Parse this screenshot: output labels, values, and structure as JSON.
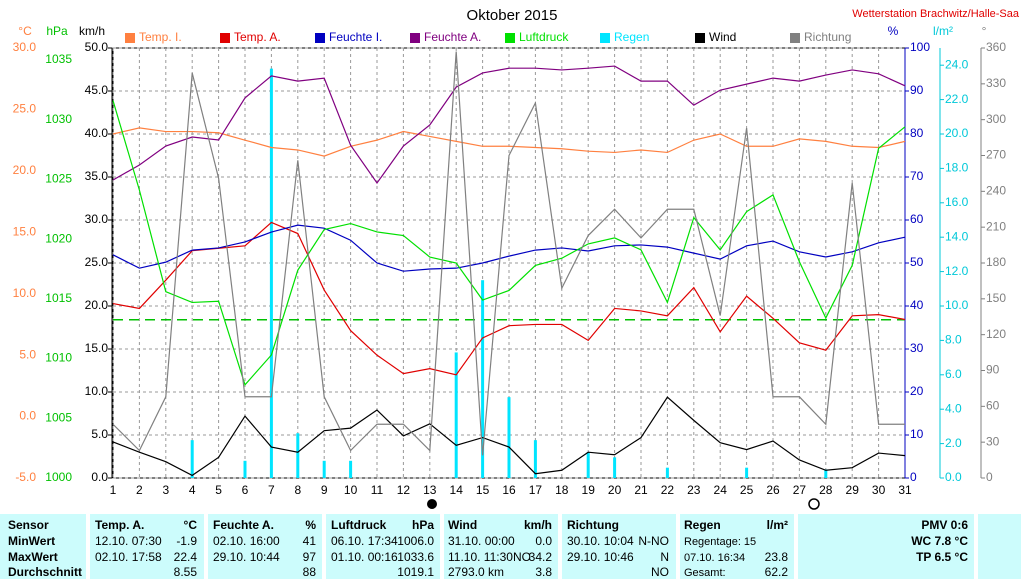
{
  "chart_data": {
    "type": "line",
    "title": "Oktober 2015",
    "station": "Wetterstation Brachwitz/Halle-Saa",
    "x": [
      1,
      2,
      3,
      4,
      5,
      6,
      7,
      8,
      9,
      10,
      11,
      12,
      13,
      14,
      15,
      16,
      17,
      18,
      19,
      20,
      21,
      22,
      23,
      24,
      25,
      26,
      27,
      28,
      29,
      30,
      31
    ],
    "xlim": [
      1,
      31
    ],
    "grid": true,
    "axes": {
      "temp": {
        "label": "°C",
        "color": "#ff8040",
        "lim": [
          -5,
          30
        ],
        "ticks": [
          {
            "value": -5,
            "label": "-5.0"
          },
          {
            "value": 0,
            "label": "0.0"
          },
          {
            "value": 5,
            "label": "5.0"
          },
          {
            "value": 10,
            "label": "10.0"
          },
          {
            "value": 15,
            "label": "15.0"
          },
          {
            "value": 20,
            "label": "20.0"
          },
          {
            "value": 25,
            "label": "25.0"
          },
          {
            "value": 30,
            "label": "30.0"
          }
        ]
      },
      "hpa": {
        "label": "hPa",
        "color": "#00c000",
        "lim": [
          1000,
          1036
        ],
        "ticks": [
          1000,
          1005,
          1010,
          1015,
          1020,
          1025,
          1030,
          1035
        ]
      },
      "kmh": {
        "label": "km/h",
        "color": "#000000",
        "lim": [
          0,
          50
        ],
        "ticks": [
          {
            "value": 0,
            "label": "0.0"
          },
          {
            "value": 5,
            "label": "5.0"
          },
          {
            "value": 10,
            "label": "10.0"
          },
          {
            "value": 15,
            "label": "15.0"
          },
          {
            "value": 20,
            "label": "20.0"
          },
          {
            "value": 25,
            "label": "25.0"
          },
          {
            "value": 30,
            "label": "30.0"
          },
          {
            "value": 35,
            "label": "35.0"
          },
          {
            "value": 40,
            "label": "40.0"
          },
          {
            "value": 45,
            "label": "45.0"
          },
          {
            "value": 50,
            "label": "50.0"
          }
        ]
      },
      "pct": {
        "label": "%",
        "color": "#0000c0",
        "lim": [
          0,
          100
        ],
        "ticks": [
          0,
          10,
          20,
          30,
          40,
          50,
          60,
          70,
          80,
          90,
          100
        ]
      },
      "rain": {
        "label": "l/m²",
        "color": "#00c8d8",
        "lim": [
          0,
          25
        ],
        "ticks": [
          {
            "value": 0,
            "label": "0.0"
          },
          {
            "value": 2,
            "label": "2.0"
          },
          {
            "value": 4,
            "label": "4.0"
          },
          {
            "value": 6,
            "label": "6.0"
          },
          {
            "value": 8,
            "label": "8.0"
          },
          {
            "value": 10,
            "label": "10.0"
          },
          {
            "value": 12,
            "label": "12.0"
          },
          {
            "value": 14,
            "label": "14.0"
          },
          {
            "value": 16,
            "label": "16.0"
          },
          {
            "value": 18,
            "label": "18.0"
          },
          {
            "value": 20,
            "label": "20.0"
          },
          {
            "value": 22,
            "label": "22.0"
          },
          {
            "value": 24,
            "label": "24.0"
          }
        ]
      },
      "deg": {
        "label": "°",
        "color": "#808080",
        "lim": [
          0,
          360
        ],
        "ticks": [
          0,
          30,
          60,
          90,
          120,
          150,
          180,
          210,
          240,
          270,
          300,
          330,
          360
        ]
      }
    },
    "pressure_reference": 1013.25,
    "series": [
      {
        "name": "Temp. I.",
        "color": "#ff8040",
        "axis": "temp",
        "style": "line",
        "values": [
          23.0,
          23.5,
          23.2,
          23.2,
          23.1,
          22.5,
          21.9,
          21.7,
          21.2,
          22.0,
          22.5,
          23.2,
          22.8,
          22.4,
          22.0,
          22.0,
          21.9,
          21.8,
          21.6,
          21.5,
          21.7,
          21.5,
          22.5,
          23.0,
          22.0,
          22.0,
          22.6,
          22.4,
          22.0,
          21.9,
          22.4
        ]
      },
      {
        "name": "Temp. A.",
        "color": "#e00000",
        "axis": "temp",
        "style": "line",
        "values": [
          9.2,
          8.8,
          11.1,
          13.5,
          13.7,
          13.9,
          15.8,
          14.9,
          10.3,
          7.0,
          5.0,
          3.5,
          3.9,
          3.4,
          6.4,
          7.4,
          7.5,
          7.5,
          6.2,
          8.8,
          8.6,
          8.2,
          10.5,
          6.9,
          9.8,
          8.0,
          6.0,
          5.4,
          8.2,
          8.3,
          7.9
        ]
      },
      {
        "name": "Feuchte I.",
        "color": "#0000c0",
        "axis": "pct",
        "style": "line",
        "values": [
          51.9,
          48.8,
          50.2,
          53.0,
          53.5,
          54.9,
          57.2,
          58.8,
          58.1,
          55.3,
          50.0,
          48.1,
          48.6,
          48.8,
          50.0,
          51.6,
          53.0,
          53.5,
          52.8,
          54.0,
          54.2,
          53.7,
          52.3,
          50.9,
          54.0,
          55.1,
          52.6,
          51.4,
          52.6,
          54.7,
          56.0
        ]
      },
      {
        "name": "Feuchte A.",
        "color": "#800080",
        "axis": "pct",
        "style": "line",
        "values": [
          69.3,
          72.8,
          77.2,
          79.3,
          78.6,
          88.4,
          93.5,
          92.3,
          93.0,
          77.4,
          68.6,
          77.2,
          82.1,
          90.9,
          94.2,
          95.3,
          95.3,
          94.9,
          95.3,
          95.8,
          92.3,
          92.3,
          86.7,
          90.2,
          91.6,
          93.0,
          92.3,
          93.7,
          94.9,
          94.0,
          91.2
        ]
      },
      {
        "name": "Luftdruck",
        "color": "#00e000",
        "axis": "hpa",
        "style": "line",
        "values": [
          1031.6,
          1024.1,
          1015.6,
          1014.7,
          1014.8,
          1007.8,
          1010.3,
          1017.4,
          1020.8,
          1021.3,
          1020.6,
          1020.3,
          1018.5,
          1018.0,
          1014.9,
          1015.7,
          1017.8,
          1018.4,
          1019.6,
          1020.1,
          1019.1,
          1014.7,
          1021.8,
          1019.1,
          1022.3,
          1023.7,
          1018.1,
          1013.4,
          1017.8,
          1027.6,
          1029.4
        ]
      },
      {
        "name": "Regen",
        "color": "#00e5ff",
        "axis": "rain",
        "style": "bar",
        "values": [
          0,
          0,
          0,
          2.2,
          0,
          1.0,
          23.8,
          2.6,
          1.0,
          1.0,
          0,
          0,
          0,
          7.3,
          11.5,
          4.7,
          2.2,
          0,
          1.5,
          1.2,
          0,
          0.6,
          0,
          0,
          0.6,
          0,
          0,
          0.5,
          0,
          0,
          0
        ]
      },
      {
        "name": "Wind",
        "color": "#000000",
        "axis": "kmh",
        "style": "line",
        "values": [
          4.2,
          3.0,
          1.9,
          0.3,
          2.4,
          7.2,
          3.6,
          3.0,
          5.5,
          5.8,
          7.9,
          4.9,
          6.3,
          3.8,
          4.7,
          3.6,
          0.5,
          0.9,
          3.0,
          2.7,
          4.7,
          9.4,
          6.7,
          4.1,
          3.3,
          4.3,
          2.1,
          0.9,
          1.2,
          2.9,
          2.6
        ]
      },
      {
        "name": "Richtung",
        "color": "#808080",
        "axis": "deg",
        "style": "line",
        "values": [
          45,
          23,
          68,
          339,
          251,
          68,
          68,
          266,
          68,
          23,
          45,
          45,
          23,
          357,
          19,
          270,
          314,
          159,
          203,
          225,
          201,
          225,
          225,
          136,
          293,
          68,
          68,
          45,
          247,
          45,
          45
        ]
      }
    ]
  },
  "table": {
    "rows": [
      [
        "Sensor",
        "Temp. A.",
        "°C",
        "Feuchte A.",
        "%",
        "Luftdruck",
        "hPa",
        "Wind",
        "km/h",
        "Richtung",
        null,
        "Regen",
        "l/m²",
        "PMV 0:6"
      ],
      [
        "MinWert",
        "12.10. 07:30",
        "-1.9",
        "02.10. 16:00",
        "41",
        "06.10. 17:34",
        "1006.0",
        "31.10. 00:00",
        "0.0",
        "30.10. 10:04",
        "N-NO",
        "Regentage: 15",
        null,
        "WC 7.8 °C"
      ],
      [
        "MaxWert",
        "02.10. 17:58",
        "22.4",
        "29.10. 10:44",
        "97",
        "01.10. 00:16",
        "1033.6",
        "11.10. 11:30NO",
        "34.2",
        "29.10. 10:46",
        "N",
        "07.10. 16:34",
        "23.8",
        "TP 6.5 °C"
      ],
      [
        "Durchschnitt",
        null,
        "8.55",
        null,
        "88",
        null,
        "1019.1",
        "2793.0 km",
        "3.8",
        null,
        "NO",
        "Gesamt:",
        "62.2",
        null
      ]
    ]
  }
}
